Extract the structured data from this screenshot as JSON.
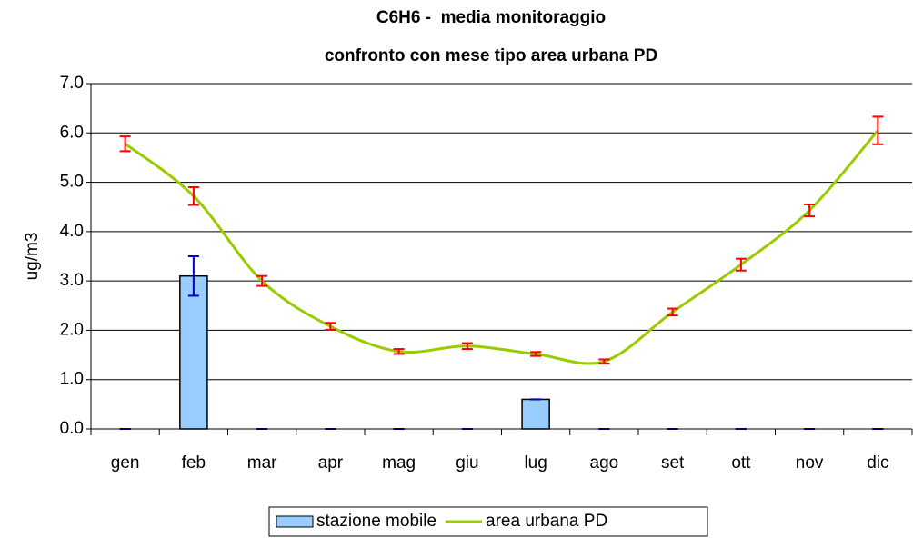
{
  "chart_data": {
    "type": "bar-line",
    "title": [
      "C6H6 -  media monitoraggio",
      "confronto con mese tipo area urbana PD"
    ],
    "ylabel": "ug/m3",
    "categories": [
      "gen",
      "feb",
      "mar",
      "apr",
      "mag",
      "giu",
      "lug",
      "ago",
      "set",
      "ott",
      "nov",
      "dic"
    ],
    "series": [
      {
        "name": "stazione mobile",
        "kind": "bar",
        "color": "#99ccff",
        "error_color": "#0000cc",
        "values": [
          0,
          3.1,
          0,
          0,
          0,
          0,
          0.6,
          0,
          0,
          0,
          0,
          0
        ],
        "errors": [
          0,
          0.4,
          0,
          0,
          0,
          0,
          0,
          0,
          0,
          0,
          0,
          0
        ]
      },
      {
        "name": "area urbana PD",
        "kind": "line",
        "color": "#99cc00",
        "error_color": "#ff0000",
        "values": [
          5.78,
          4.72,
          3.0,
          2.08,
          1.57,
          1.68,
          1.52,
          1.37,
          2.37,
          3.33,
          4.43,
          6.05
        ],
        "errors": [
          0.15,
          0.18,
          0.1,
          0.07,
          0.05,
          0.06,
          0.04,
          0.04,
          0.07,
          0.12,
          0.12,
          0.28
        ]
      }
    ],
    "ylim": [
      0,
      7
    ],
    "yticks": [
      {
        "value": 0,
        "label": "0.0"
      },
      {
        "value": 1,
        "label": "1.0"
      },
      {
        "value": 2,
        "label": "2.0"
      },
      {
        "value": 3,
        "label": "3.0"
      },
      {
        "value": 4,
        "label": "4.0"
      },
      {
        "value": 5,
        "label": "5.0"
      },
      {
        "value": 6,
        "label": "6.0"
      },
      {
        "value": 7,
        "label": "7.0"
      }
    ],
    "grid": true,
    "legend": "bottom"
  }
}
